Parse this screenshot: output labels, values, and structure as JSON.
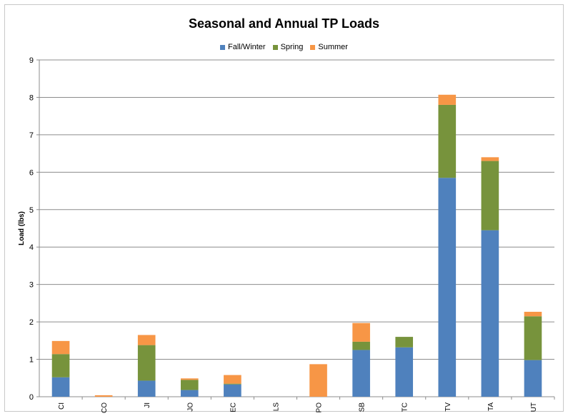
{
  "chart_data": {
    "type": "bar",
    "stacked": true,
    "title": "Seasonal and Annual TP Loads",
    "xlabel": "",
    "ylabel": "Load (lbs)",
    "ylim": [
      0,
      9
    ],
    "yticks": [
      "0",
      "1",
      "2",
      "3",
      "4",
      "5",
      "6",
      "7",
      "8",
      "9"
    ],
    "grid": true,
    "legend_position": "top",
    "categories": [
      "CI",
      "CO",
      "JI",
      "JO",
      "EC",
      "LS",
      "PO",
      "SB",
      "TC",
      "TV",
      "TA",
      "UT"
    ],
    "series": [
      {
        "name": "Fall/Winter",
        "color": "#4F81BD",
        "values": [
          0.52,
          0.0,
          0.43,
          0.18,
          0.33,
          0.0,
          0.0,
          1.25,
          1.32,
          5.85,
          4.45,
          0.98
        ]
      },
      {
        "name": "Spring",
        "color": "#77933C",
        "values": [
          0.62,
          0.0,
          0.95,
          0.27,
          0.02,
          0.0,
          0.0,
          0.22,
          0.28,
          1.95,
          1.85,
          1.17
        ]
      },
      {
        "name": "Summer",
        "color": "#F79646",
        "values": [
          0.35,
          0.04,
          0.27,
          0.04,
          0.23,
          0.0,
          0.87,
          0.5,
          0.0,
          0.27,
          0.1,
          0.12
        ]
      }
    ]
  }
}
